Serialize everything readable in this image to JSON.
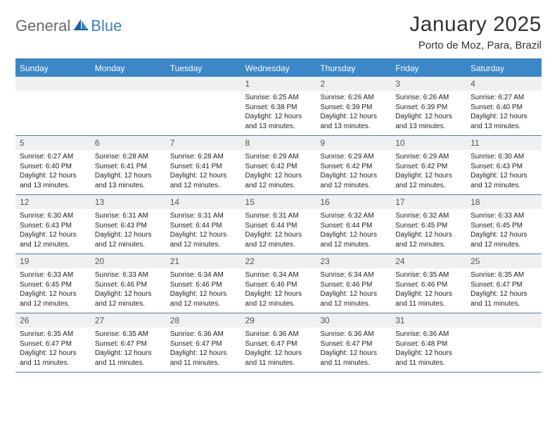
{
  "brand": {
    "part1": "General",
    "part2": "Blue"
  },
  "title": "January 2025",
  "location": "Porto de Moz, Para, Brazil",
  "colors": {
    "header_bg": "#3b87c8",
    "header_text": "#ffffff",
    "accent": "#3b7fbf",
    "daynum_bg": "#eef0f2",
    "rule": "#5a7da8",
    "text": "#222222",
    "logo_gray": "#6a6a6a"
  },
  "dow": [
    "Sunday",
    "Monday",
    "Tuesday",
    "Wednesday",
    "Thursday",
    "Friday",
    "Saturday"
  ],
  "weeks": [
    [
      null,
      null,
      null,
      {
        "n": "1",
        "sr": "6:25 AM",
        "ss": "6:38 PM",
        "dl": "12 hours and 13 minutes."
      },
      {
        "n": "2",
        "sr": "6:26 AM",
        "ss": "6:39 PM",
        "dl": "12 hours and 13 minutes."
      },
      {
        "n": "3",
        "sr": "6:26 AM",
        "ss": "6:39 PM",
        "dl": "12 hours and 13 minutes."
      },
      {
        "n": "4",
        "sr": "6:27 AM",
        "ss": "6:40 PM",
        "dl": "12 hours and 13 minutes."
      }
    ],
    [
      {
        "n": "5",
        "sr": "6:27 AM",
        "ss": "6:40 PM",
        "dl": "12 hours and 13 minutes."
      },
      {
        "n": "6",
        "sr": "6:28 AM",
        "ss": "6:41 PM",
        "dl": "12 hours and 13 minutes."
      },
      {
        "n": "7",
        "sr": "6:28 AM",
        "ss": "6:41 PM",
        "dl": "12 hours and 12 minutes."
      },
      {
        "n": "8",
        "sr": "6:29 AM",
        "ss": "6:42 PM",
        "dl": "12 hours and 12 minutes."
      },
      {
        "n": "9",
        "sr": "6:29 AM",
        "ss": "6:42 PM",
        "dl": "12 hours and 12 minutes."
      },
      {
        "n": "10",
        "sr": "6:29 AM",
        "ss": "6:42 PM",
        "dl": "12 hours and 12 minutes."
      },
      {
        "n": "11",
        "sr": "6:30 AM",
        "ss": "6:43 PM",
        "dl": "12 hours and 12 minutes."
      }
    ],
    [
      {
        "n": "12",
        "sr": "6:30 AM",
        "ss": "6:43 PM",
        "dl": "12 hours and 12 minutes."
      },
      {
        "n": "13",
        "sr": "6:31 AM",
        "ss": "6:43 PM",
        "dl": "12 hours and 12 minutes."
      },
      {
        "n": "14",
        "sr": "6:31 AM",
        "ss": "6:44 PM",
        "dl": "12 hours and 12 minutes."
      },
      {
        "n": "15",
        "sr": "6:31 AM",
        "ss": "6:44 PM",
        "dl": "12 hours and 12 minutes."
      },
      {
        "n": "16",
        "sr": "6:32 AM",
        "ss": "6:44 PM",
        "dl": "12 hours and 12 minutes."
      },
      {
        "n": "17",
        "sr": "6:32 AM",
        "ss": "6:45 PM",
        "dl": "12 hours and 12 minutes."
      },
      {
        "n": "18",
        "sr": "6:33 AM",
        "ss": "6:45 PM",
        "dl": "12 hours and 12 minutes."
      }
    ],
    [
      {
        "n": "19",
        "sr": "6:33 AM",
        "ss": "6:45 PM",
        "dl": "12 hours and 12 minutes."
      },
      {
        "n": "20",
        "sr": "6:33 AM",
        "ss": "6:46 PM",
        "dl": "12 hours and 12 minutes."
      },
      {
        "n": "21",
        "sr": "6:34 AM",
        "ss": "6:46 PM",
        "dl": "12 hours and 12 minutes."
      },
      {
        "n": "22",
        "sr": "6:34 AM",
        "ss": "6:46 PM",
        "dl": "12 hours and 12 minutes."
      },
      {
        "n": "23",
        "sr": "6:34 AM",
        "ss": "6:46 PM",
        "dl": "12 hours and 12 minutes."
      },
      {
        "n": "24",
        "sr": "6:35 AM",
        "ss": "6:46 PM",
        "dl": "12 hours and 11 minutes."
      },
      {
        "n": "25",
        "sr": "6:35 AM",
        "ss": "6:47 PM",
        "dl": "12 hours and 11 minutes."
      }
    ],
    [
      {
        "n": "26",
        "sr": "6:35 AM",
        "ss": "6:47 PM",
        "dl": "12 hours and 11 minutes."
      },
      {
        "n": "27",
        "sr": "6:35 AM",
        "ss": "6:47 PM",
        "dl": "12 hours and 11 minutes."
      },
      {
        "n": "28",
        "sr": "6:36 AM",
        "ss": "6:47 PM",
        "dl": "12 hours and 11 minutes."
      },
      {
        "n": "29",
        "sr": "6:36 AM",
        "ss": "6:47 PM",
        "dl": "12 hours and 11 minutes."
      },
      {
        "n": "30",
        "sr": "6:36 AM",
        "ss": "6:47 PM",
        "dl": "12 hours and 11 minutes."
      },
      {
        "n": "31",
        "sr": "6:36 AM",
        "ss": "6:48 PM",
        "dl": "12 hours and 11 minutes."
      },
      null
    ]
  ],
  "labels": {
    "sunrise": "Sunrise:",
    "sunset": "Sunset:",
    "daylight": "Daylight:"
  }
}
